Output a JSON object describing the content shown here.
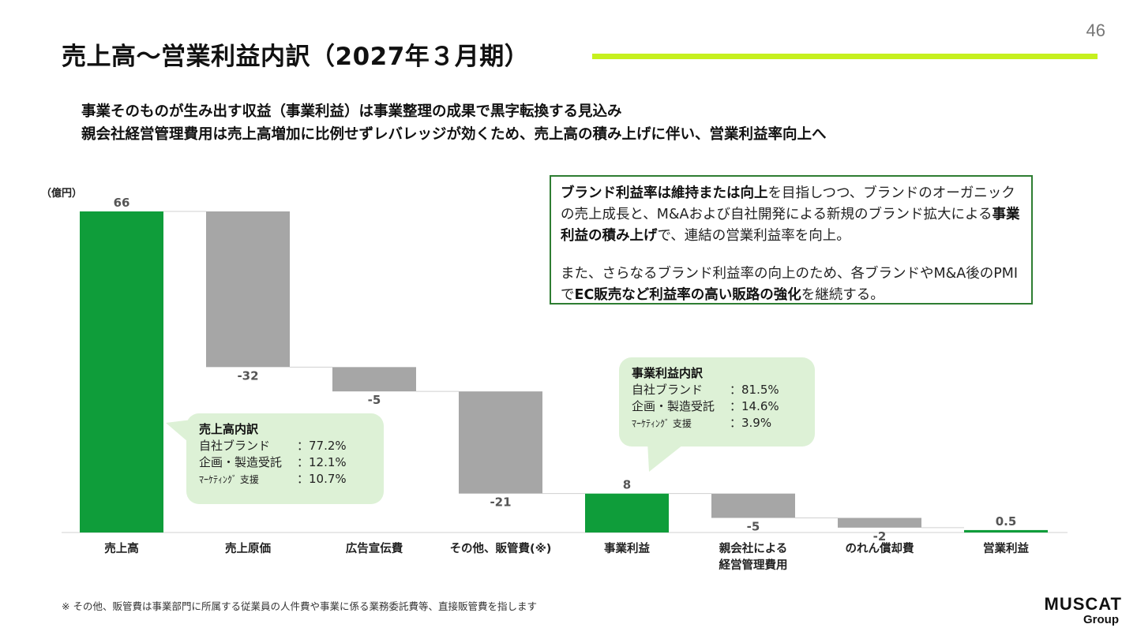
{
  "page_number": "46",
  "title": "売上高～営業利益内訳（2027年３月期）",
  "lead_lines": [
    "事業そのものが生み出す収益（事業利益）は事業整理の成果で黒字転換する見込み",
    "親会社経営管理費用は売上高増加に比例せずレバレッジが効くため、売上高の積み上げに伴い、営業利益率向上へ"
  ],
  "colors": {
    "accent_rule": "#c6f01e",
    "total_bar": "#0f9d3a",
    "negative_bar": "#a6a6a6",
    "box_border": "#2e7d32",
    "callout_bg": "#ddf1d6"
  },
  "chart_data": {
    "type": "waterfall",
    "unit_label": "（億円）",
    "categories": [
      "売上高",
      "売上原価",
      "広告宣伝費",
      "その他、販管費(※)",
      "事業利益",
      "親会社による経営管理費用",
      "のれん償却費",
      "営業利益"
    ],
    "category_lines": [
      [
        "売上高"
      ],
      [
        "売上原価"
      ],
      [
        "広告宣伝費"
      ],
      [
        "その他、販管費(※)"
      ],
      [
        "事業利益"
      ],
      [
        "親会社による",
        "経営管理費用"
      ],
      [
        "のれん償却費"
      ],
      [
        "営業利益"
      ]
    ],
    "values": [
      66,
      -32,
      -5,
      -21,
      8,
      -5,
      -2,
      0.5
    ],
    "value_labels": [
      "66",
      "-32",
      "-5",
      "-21",
      "8",
      "-5",
      "-2",
      "0.5"
    ],
    "is_total": [
      true,
      false,
      false,
      false,
      true,
      false,
      false,
      true
    ],
    "ylim": [
      0,
      66
    ],
    "grid": false,
    "legend": "none"
  },
  "note_box": {
    "p1": [
      {
        "t": "ブランド利益率は維持または向上",
        "b": true
      },
      {
        "t": "を目指しつつ、ブランドのオーガニックの売上成長と、M&Aおよび自社開発による新規のブランド拡大による",
        "b": false
      },
      {
        "t": "事業利益の積み上げ",
        "b": true
      },
      {
        "t": "で、連結の営業利益率を向上。",
        "b": false
      }
    ],
    "p2": [
      {
        "t": "また、さらなるブランド利益率の向上のため、各ブランドやM&A後のPMIで",
        "b": false
      },
      {
        "t": "EC販売など利益率の高い販路の強化",
        "b": true
      },
      {
        "t": "を継続する。",
        "b": false
      }
    ]
  },
  "callout_sales": {
    "title": "売上高内訳",
    "rows": [
      {
        "label": "自社ブランド",
        "value": "：77.2%"
      },
      {
        "label": "企画・製造受託",
        "value": "：12.1%"
      },
      {
        "label": "ﾏｰｹﾃｨﾝｸﾞ 支援",
        "value": "：10.7%"
      }
    ]
  },
  "callout_op": {
    "title": "事業利益内訳",
    "rows": [
      {
        "label": "自社ブランド",
        "value": "：81.5%"
      },
      {
        "label": "企画・製造受託",
        "value": "：14.6%"
      },
      {
        "label": "ﾏｰｹﾃｨﾝｸﾞ 支援",
        "value": "：3.9%"
      }
    ]
  },
  "footnote": "※ その他、販管費は事業部門に所属する従業員の人件費や事業に係る業務委託費等、直接販管費を指します",
  "logo": {
    "brand": "MUSCAT",
    "sub": "Group"
  }
}
